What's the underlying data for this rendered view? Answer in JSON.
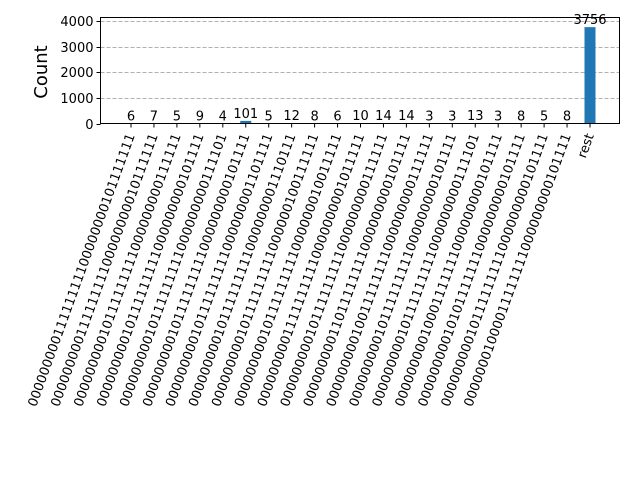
{
  "chart_data": {
    "type": "bar",
    "title": "",
    "xlabel": "",
    "ylabel": "Count",
    "ylim": [
      0,
      4132
    ],
    "yticks": [
      0,
      1000,
      2000,
      3000,
      4000
    ],
    "grid": "horizontal dashed",
    "bar_color": "#1f77b4",
    "categories": [
      "00000000011111111100000000101111111",
      "00000000011111111100000000010111111",
      "00000000010111111111000000000111111",
      "00000000010111111111000000000101111",
      "00000000010111111111000000000111101",
      "00000000010111111111000000000101111",
      "00000000010111111111000000001101111",
      "00000000010111111111000000001110111",
      "00000000010111111111000000100111111",
      "00000000010111111111000000010011111",
      "00000000011111111110000000001011111",
      "00000000010111111111000000000111111",
      "00000000011011111111000000000101111",
      "00000000010011111111000000000111111",
      "00000000010111111111000000000101111",
      "00000000010111111111000000000111101",
      "00000000010001111111000000000101111",
      "00000000010101111111000000000101111",
      "00000000010111111111000000000101111",
      "00000001000011111111000000000101111",
      "rest"
    ],
    "values": [
      6,
      7,
      5,
      9,
      4,
      101,
      5,
      12,
      8,
      6,
      10,
      14,
      14,
      3,
      3,
      13,
      3,
      8,
      5,
      8,
      3756
    ]
  }
}
